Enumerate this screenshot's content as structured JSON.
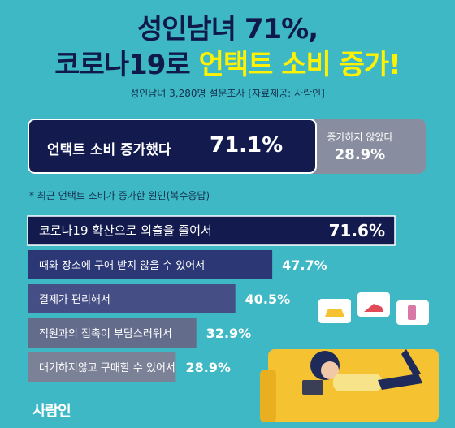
{
  "header": {
    "title_line1": "성인남녀 71%,",
    "title_line2_prefix": "코로나19로 ",
    "title_line2_highlight": "언택트 소비 증가!",
    "subtitle": "성인남녀 3,280명 설문조사 [자료제공: 사람인]"
  },
  "split": {
    "increased_label": "언택트 소비 증가했다",
    "increased_value": "71.1%",
    "increased_pct": 71.1,
    "not_increased_label": "증가하지 않았다",
    "not_increased_value": "28.9%",
    "not_increased_pct": 28.9
  },
  "note": "* 최근 언택트 소비가 증가한 원인(복수응답)",
  "chart_data": {
    "type": "bar",
    "orientation": "horizontal",
    "title": "",
    "categories": [
      "코로나19 확산으로 외출을 줄여서",
      "때와 장소에 구애 받지 않을 수 있어서",
      "결제가 편리해서",
      "직원과의 접촉이 부담스러워서",
      "대기하지않고 구매할 수 있어서"
    ],
    "values": [
      71.6,
      47.7,
      40.5,
      32.9,
      28.9
    ],
    "value_labels": [
      "71.6%",
      "47.7%",
      "40.5%",
      "32.9%",
      "28.9%"
    ],
    "xlim": [
      0,
      71.6
    ],
    "colors": [
      "#121a4e",
      "#2c3776",
      "#454f86",
      "#646c8c",
      "#7b8196"
    ]
  },
  "logo": "사람인",
  "colors": {
    "background": "#3fb8c6",
    "navy": "#121a4e",
    "highlight": "#fff200",
    "gray": "#888ea0"
  }
}
